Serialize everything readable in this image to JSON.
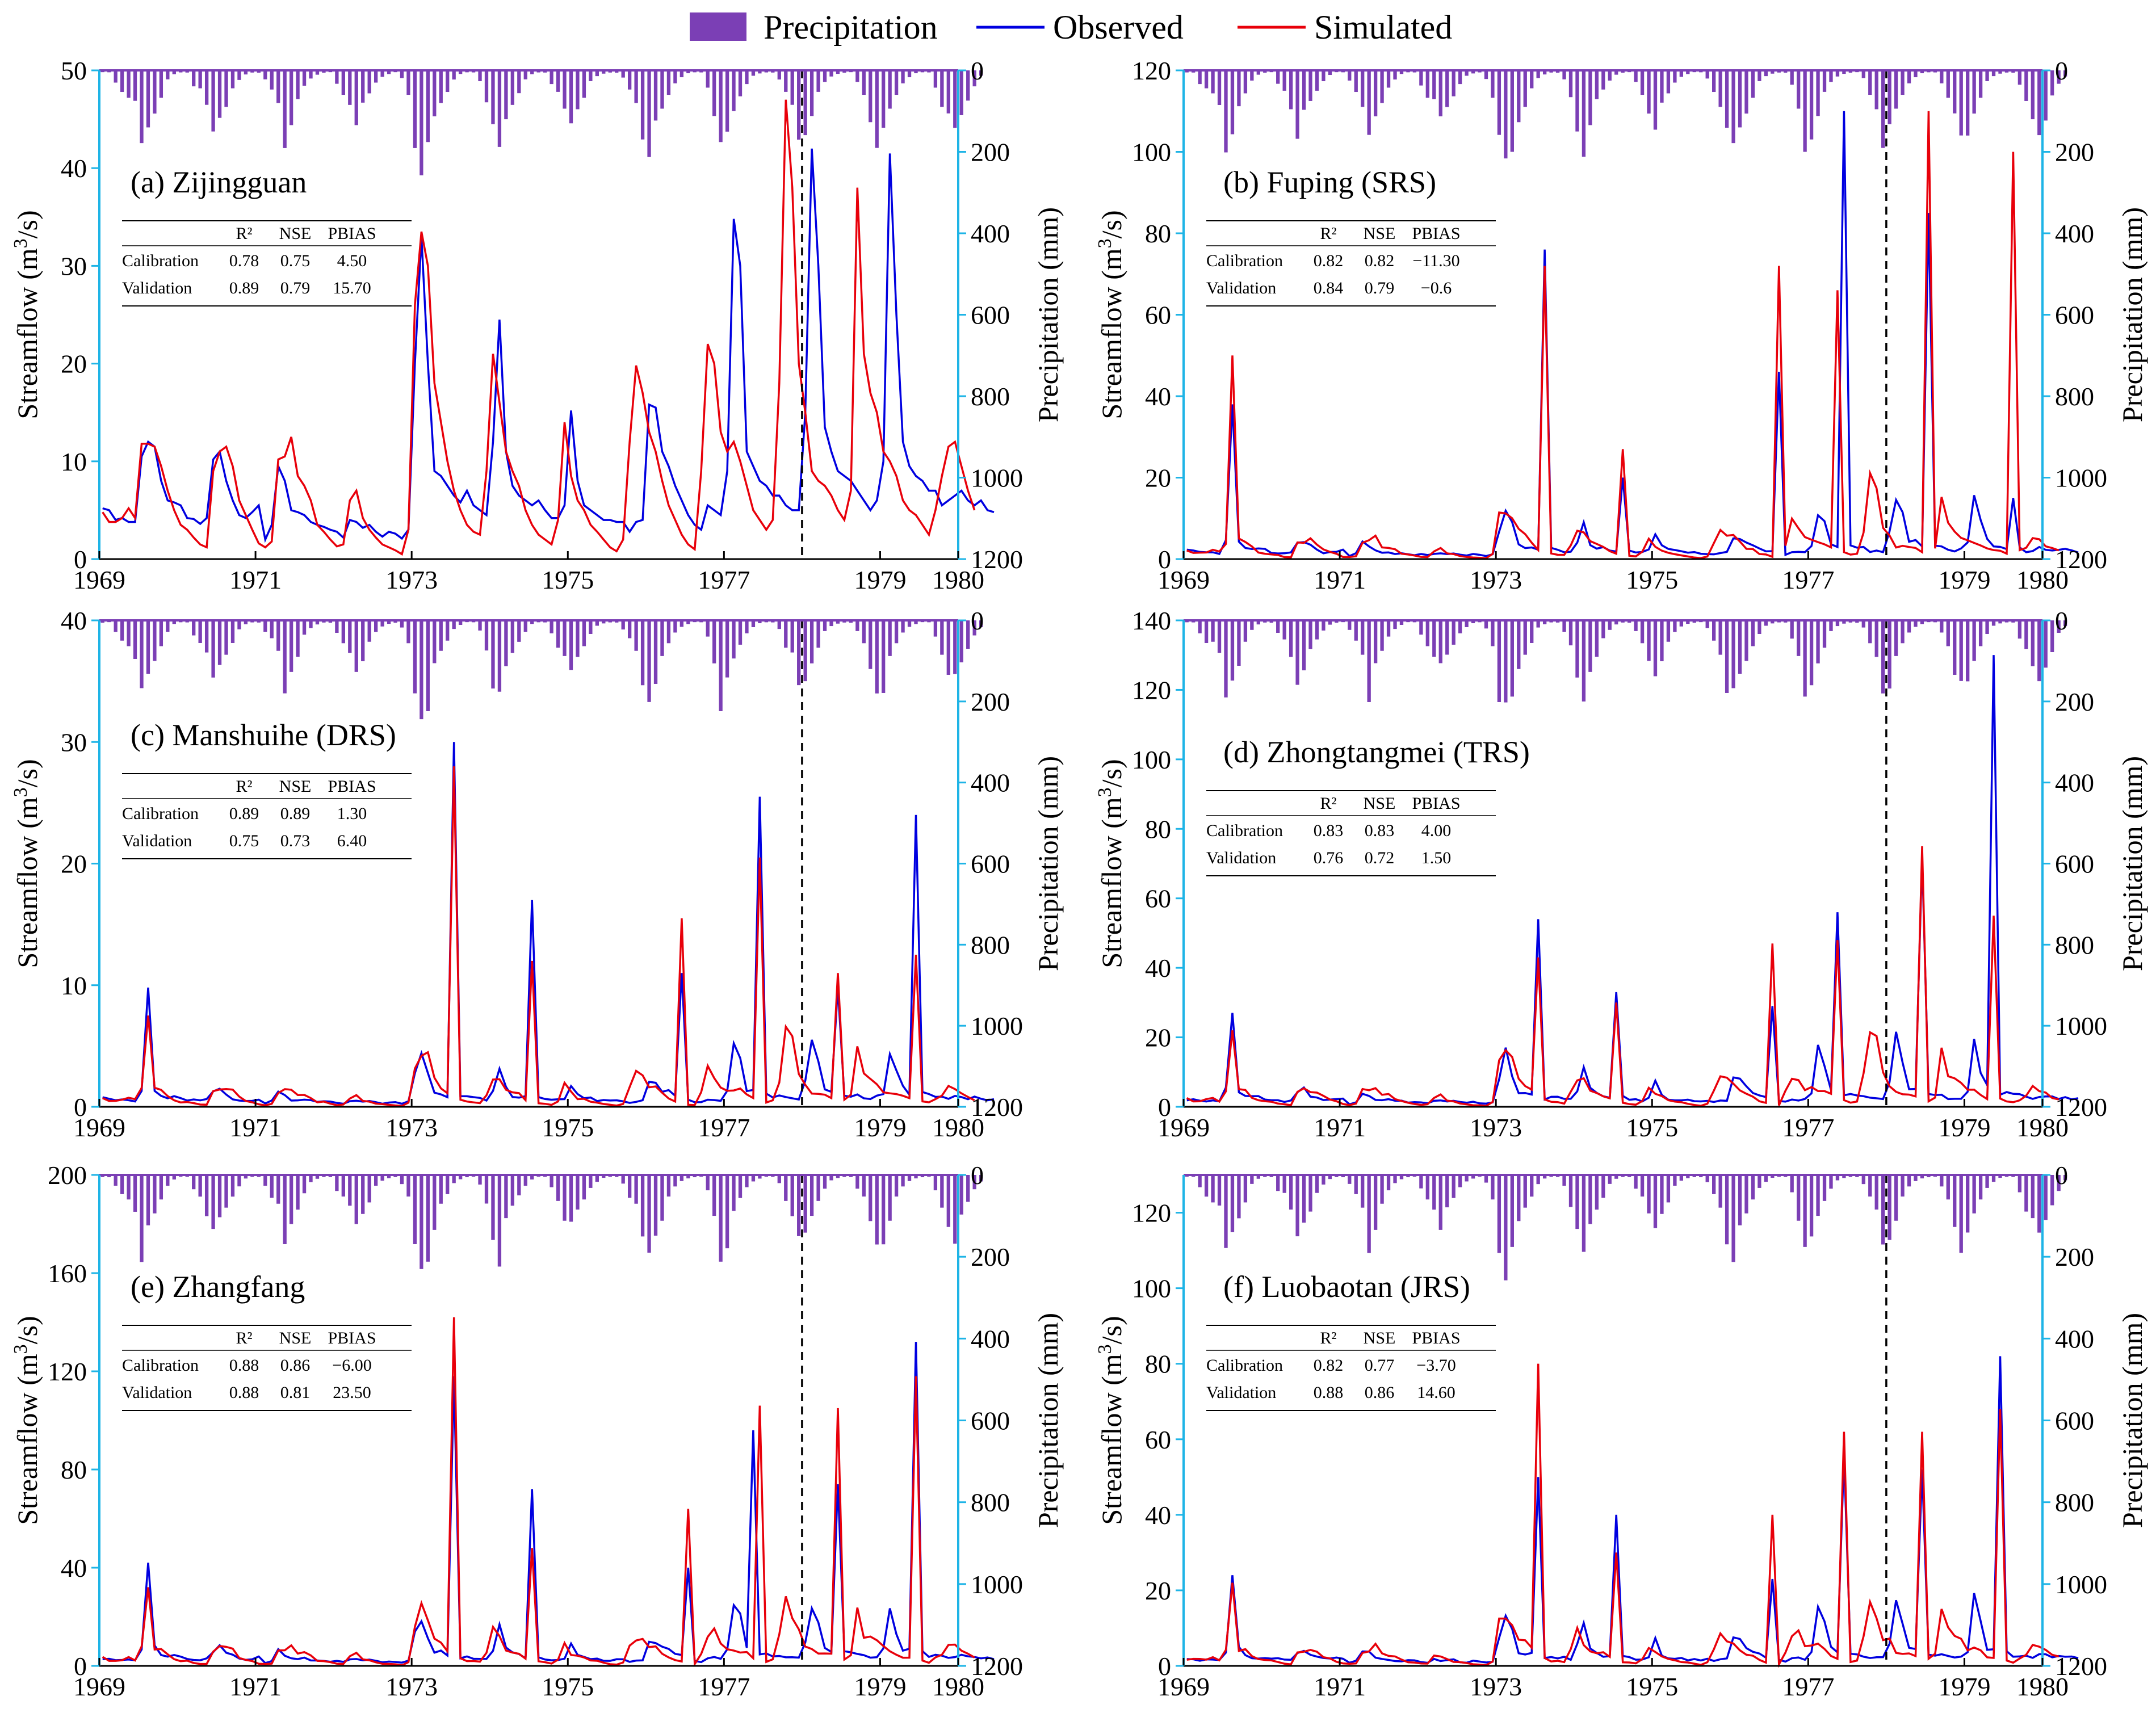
{
  "legend": {
    "precipitation": "Precipitation",
    "observed": "Observed",
    "simulated": "Simulated",
    "colors": {
      "precipitation": "#7B3FB5",
      "observed": "#0000E0",
      "simulated": "#E8000A",
      "axis": "#1EB4E6"
    }
  },
  "axis_labels": {
    "streamflow_prefix": "Streamflow (m",
    "streamflow_sup": "3",
    "streamflow_suffix": "/s)",
    "precipitation": "Precipitation (mm)"
  },
  "table_headers": {
    "row_label": "",
    "r2": "R²",
    "nse": "NSE",
    "pbias": "PBIAS"
  },
  "chart_data": [
    {
      "type": "line",
      "title": "(a) Zijingguan",
      "x_ticks": [
        "1969",
        "1971",
        "1973",
        "1975",
        "1977",
        "1979",
        "1980"
      ],
      "x_range": [
        1969,
        1980
      ],
      "split_year": 1978,
      "ylim": [
        0,
        50
      ],
      "y_ticks": [
        "0",
        "10",
        "20",
        "30",
        "40",
        "50"
      ],
      "precip_ylim": [
        1200,
        0
      ],
      "precip_ticks": [
        "0",
        "200",
        "400",
        "600",
        "800",
        "1000",
        "1200"
      ],
      "metrics": [
        {
          "label": "Calibration",
          "r2": "0.78",
          "nse": "0.75",
          "pbias": "4.50"
        },
        {
          "label": "Validation",
          "r2": "0.89",
          "nse": "0.79",
          "pbias": "15.70"
        }
      ],
      "series": {
        "observed": [
          5.2,
          5,
          4,
          4.2,
          3.8,
          3.8,
          10.5,
          12,
          11.5,
          8,
          6,
          5.8,
          5.5,
          4.2,
          4.1,
          3.6,
          4.2,
          10.2,
          11,
          8,
          6,
          4.5,
          4.2,
          4.8,
          5.5,
          2,
          3.5,
          9.5,
          8,
          5,
          4.8,
          4.5,
          3.8,
          3.5,
          3.3,
          3,
          2.8,
          2.2,
          4,
          3.8,
          3.2,
          3.5,
          2.8,
          2.3,
          2.8,
          2.6,
          2.1,
          3,
          20,
          33,
          20,
          9,
          8.5,
          7.5,
          6.5,
          5.8,
          7,
          5.5,
          5,
          4.5,
          12,
          24.5,
          11,
          7.5,
          6.5,
          6,
          5.5,
          6,
          5,
          4.2,
          4.2,
          5.5,
          15.2,
          8,
          5.5,
          5,
          4.5,
          4,
          4,
          3.8,
          3.8,
          2.8,
          3.8,
          4,
          15.8,
          15.5,
          11,
          9.5,
          7.5,
          6,
          4.5,
          3.5,
          3,
          5.5,
          5,
          4.5,
          9,
          34.8,
          30,
          11,
          9.5,
          8,
          7.5,
          6.5,
          6.5,
          5.5,
          5,
          5,
          15,
          42,
          30,
          13.5,
          11,
          9,
          8.5,
          8,
          7,
          6,
          5,
          6,
          10,
          41.5,
          25,
          12,
          9.5,
          8.5,
          8,
          7,
          7,
          5.5,
          6,
          6.5,
          7,
          6,
          5.5,
          6,
          5,
          4.8
        ],
        "simulated": [
          4.8,
          3.8,
          3.8,
          4.2,
          5.2,
          4.2,
          11.8,
          11.8,
          11.5,
          9.5,
          7,
          5,
          3.5,
          3,
          2.2,
          1.5,
          1.2,
          9,
          11,
          11.5,
          9.5,
          6,
          4.5,
          3,
          1.6,
          1.2,
          1.8,
          10.2,
          10.5,
          12.5,
          8.5,
          7.5,
          6,
          3.5,
          2.8,
          2,
          1.3,
          1.5,
          6,
          7,
          4.2,
          3,
          2.2,
          1.5,
          1.2,
          0.9,
          0.5,
          3,
          26,
          33.5,
          30,
          18,
          14,
          10,
          7,
          5,
          3.5,
          2.8,
          2.5,
          9,
          21,
          16,
          11,
          9,
          7.5,
          5,
          3.5,
          2.5,
          2,
          1.5,
          4,
          14,
          8.5,
          6,
          5,
          3.5,
          2.8,
          2,
          1.2,
          0.8,
          2,
          12,
          19.8,
          17,
          13,
          11,
          8,
          5.5,
          4,
          2.5,
          1.5,
          1,
          9,
          22,
          20,
          13,
          11,
          12,
          10,
          7.5,
          5,
          4,
          3,
          4,
          18,
          47,
          38,
          20,
          15,
          9,
          8,
          7.5,
          6.5,
          5,
          4,
          7,
          38,
          21,
          17,
          15,
          11,
          10,
          8.5,
          6,
          5,
          4.5,
          3.5,
          2.5,
          5,
          8.5,
          11.5,
          12,
          9.5,
          7,
          5
        ]
      },
      "precipitation": [
        5,
        5,
        30,
        50,
        60,
        85,
        190,
        140,
        100,
        60,
        25,
        10,
        5,
        5,
        35,
        50,
        90,
        150,
        110,
        80,
        50,
        25,
        10,
        5,
        5,
        25,
        50,
        80,
        180,
        120,
        80,
        40,
        20,
        10,
        5,
        5,
        35,
        60,
        80,
        120,
        90,
        60,
        30,
        15,
        8,
        5,
        20,
        60,
        180,
        230,
        200,
        120,
        80,
        50,
        20,
        10,
        5,
        5,
        25,
        70,
        150,
        200,
        120,
        80,
        50,
        25,
        10,
        5,
        5,
        30,
        60,
        100,
        130,
        90,
        60,
        30,
        15,
        8,
        5,
        5,
        20,
        50,
        80,
        160,
        190,
        140,
        100,
        60,
        30,
        15,
        8,
        5,
        5,
        40,
        100,
        200,
        160,
        100,
        60,
        30,
        15,
        8,
        5,
        5,
        20,
        60,
        90,
        170,
        150,
        100,
        60,
        30,
        15,
        8,
        5,
        5,
        30,
        60,
        120,
        170,
        160,
        100,
        60,
        30,
        15,
        8,
        5,
        5,
        40,
        80,
        120,
        150,
        110,
        70,
        35,
        15
      ],
      "precip_note": "monthly bars hang from top axis; values in mm"
    },
    {
      "type": "line",
      "title": "(b) Fuping (SRS)",
      "x_ticks": [
        "1969",
        "1971",
        "1973",
        "1975",
        "1977",
        "1979",
        "1980"
      ],
      "x_range": [
        1969,
        1980
      ],
      "split_year": 1978,
      "ylim": [
        0,
        120
      ],
      "y_ticks": [
        "0",
        "20",
        "40",
        "60",
        "80",
        "100",
        "120"
      ],
      "precip_ylim": [
        1200,
        0
      ],
      "precip_ticks": [
        "0",
        "200",
        "400",
        "600",
        "800",
        "1000",
        "1200"
      ],
      "metrics": [
        {
          "label": "Calibration",
          "r2": "0.82",
          "nse": "0.82",
          "pbias": "−11.30"
        },
        {
          "label": "Validation",
          "r2": "0.84",
          "nse": "0.79",
          "pbias": "−0.6"
        }
      ]
    },
    {
      "type": "line",
      "title": "(c) Manshuihe (DRS)",
      "x_ticks": [
        "1969",
        "1971",
        "1973",
        "1975",
        "1977",
        "1979",
        "1980"
      ],
      "x_range": [
        1969,
        1980
      ],
      "split_year": 1978,
      "ylim": [
        0,
        40
      ],
      "y_ticks": [
        "0",
        "10",
        "20",
        "30",
        "40"
      ],
      "precip_ylim": [
        1200,
        0
      ],
      "precip_ticks": [
        "0",
        "200",
        "400",
        "600",
        "800",
        "1000",
        "1200"
      ],
      "metrics": [
        {
          "label": "Calibration",
          "r2": "0.89",
          "nse": "0.89",
          "pbias": "1.30"
        },
        {
          "label": "Validation",
          "r2": "0.75",
          "nse": "0.73",
          "pbias": "6.40"
        }
      ]
    },
    {
      "type": "line",
      "title": "(d) Zhongtangmei  (TRS)",
      "x_ticks": [
        "1969",
        "1971",
        "1973",
        "1975",
        "1977",
        "1979",
        "1980"
      ],
      "x_range": [
        1969,
        1980
      ],
      "split_year": 1978,
      "ylim": [
        0,
        140
      ],
      "y_ticks": [
        "0",
        "20",
        "40",
        "60",
        "80",
        "100",
        "120",
        "140"
      ],
      "precip_ylim": [
        1200,
        0
      ],
      "precip_ticks": [
        "0",
        "200",
        "400",
        "600",
        "800",
        "1000",
        "1200"
      ],
      "metrics": [
        {
          "label": "Calibration",
          "r2": "0.83",
          "nse": "0.83",
          "pbias": "4.00"
        },
        {
          "label": "Validation",
          "r2": "0.76",
          "nse": "0.72",
          "pbias": "1.50"
        }
      ]
    },
    {
      "type": "line",
      "title": "(e) Zhangfang",
      "x_ticks": [
        "1969",
        "1971",
        "1973",
        "1975",
        "1977",
        "1979",
        "1980"
      ],
      "x_range": [
        1969,
        1980
      ],
      "split_year": 1978,
      "ylim": [
        0,
        200
      ],
      "y_ticks": [
        "0",
        "40",
        "80",
        "120",
        "160",
        "200"
      ],
      "precip_ylim": [
        1200,
        0
      ],
      "precip_ticks": [
        "0",
        "200",
        "400",
        "600",
        "800",
        "1000",
        "1200"
      ],
      "metrics": [
        {
          "label": "Calibration",
          "r2": "0.88",
          "nse": "0.86",
          "pbias": "−6.00"
        },
        {
          "label": "Validation",
          "r2": "0.88",
          "nse": "0.81",
          "pbias": "23.50"
        }
      ]
    },
    {
      "type": "line",
      "title": "(f) Luobaotan (JRS)",
      "x_ticks": [
        "1969",
        "1971",
        "1973",
        "1975",
        "1977",
        "1979",
        "1980"
      ],
      "x_range": [
        1969,
        1980
      ],
      "split_year": 1978,
      "ylim": [
        0,
        130
      ],
      "y_ticks": [
        "0",
        "20",
        "40",
        "60",
        "80",
        "100",
        "120"
      ],
      "precip_ylim": [
        1200,
        0
      ],
      "precip_ticks": [
        "0",
        "200",
        "400",
        "600",
        "800",
        "1000",
        "1200"
      ],
      "metrics": [
        {
          "label": "Calibration",
          "r2": "0.82",
          "nse": "0.77",
          "pbias": "−3.70"
        },
        {
          "label": "Validation",
          "r2": "0.88",
          "nse": "0.86",
          "pbias": "14.60"
        }
      ]
    }
  ]
}
